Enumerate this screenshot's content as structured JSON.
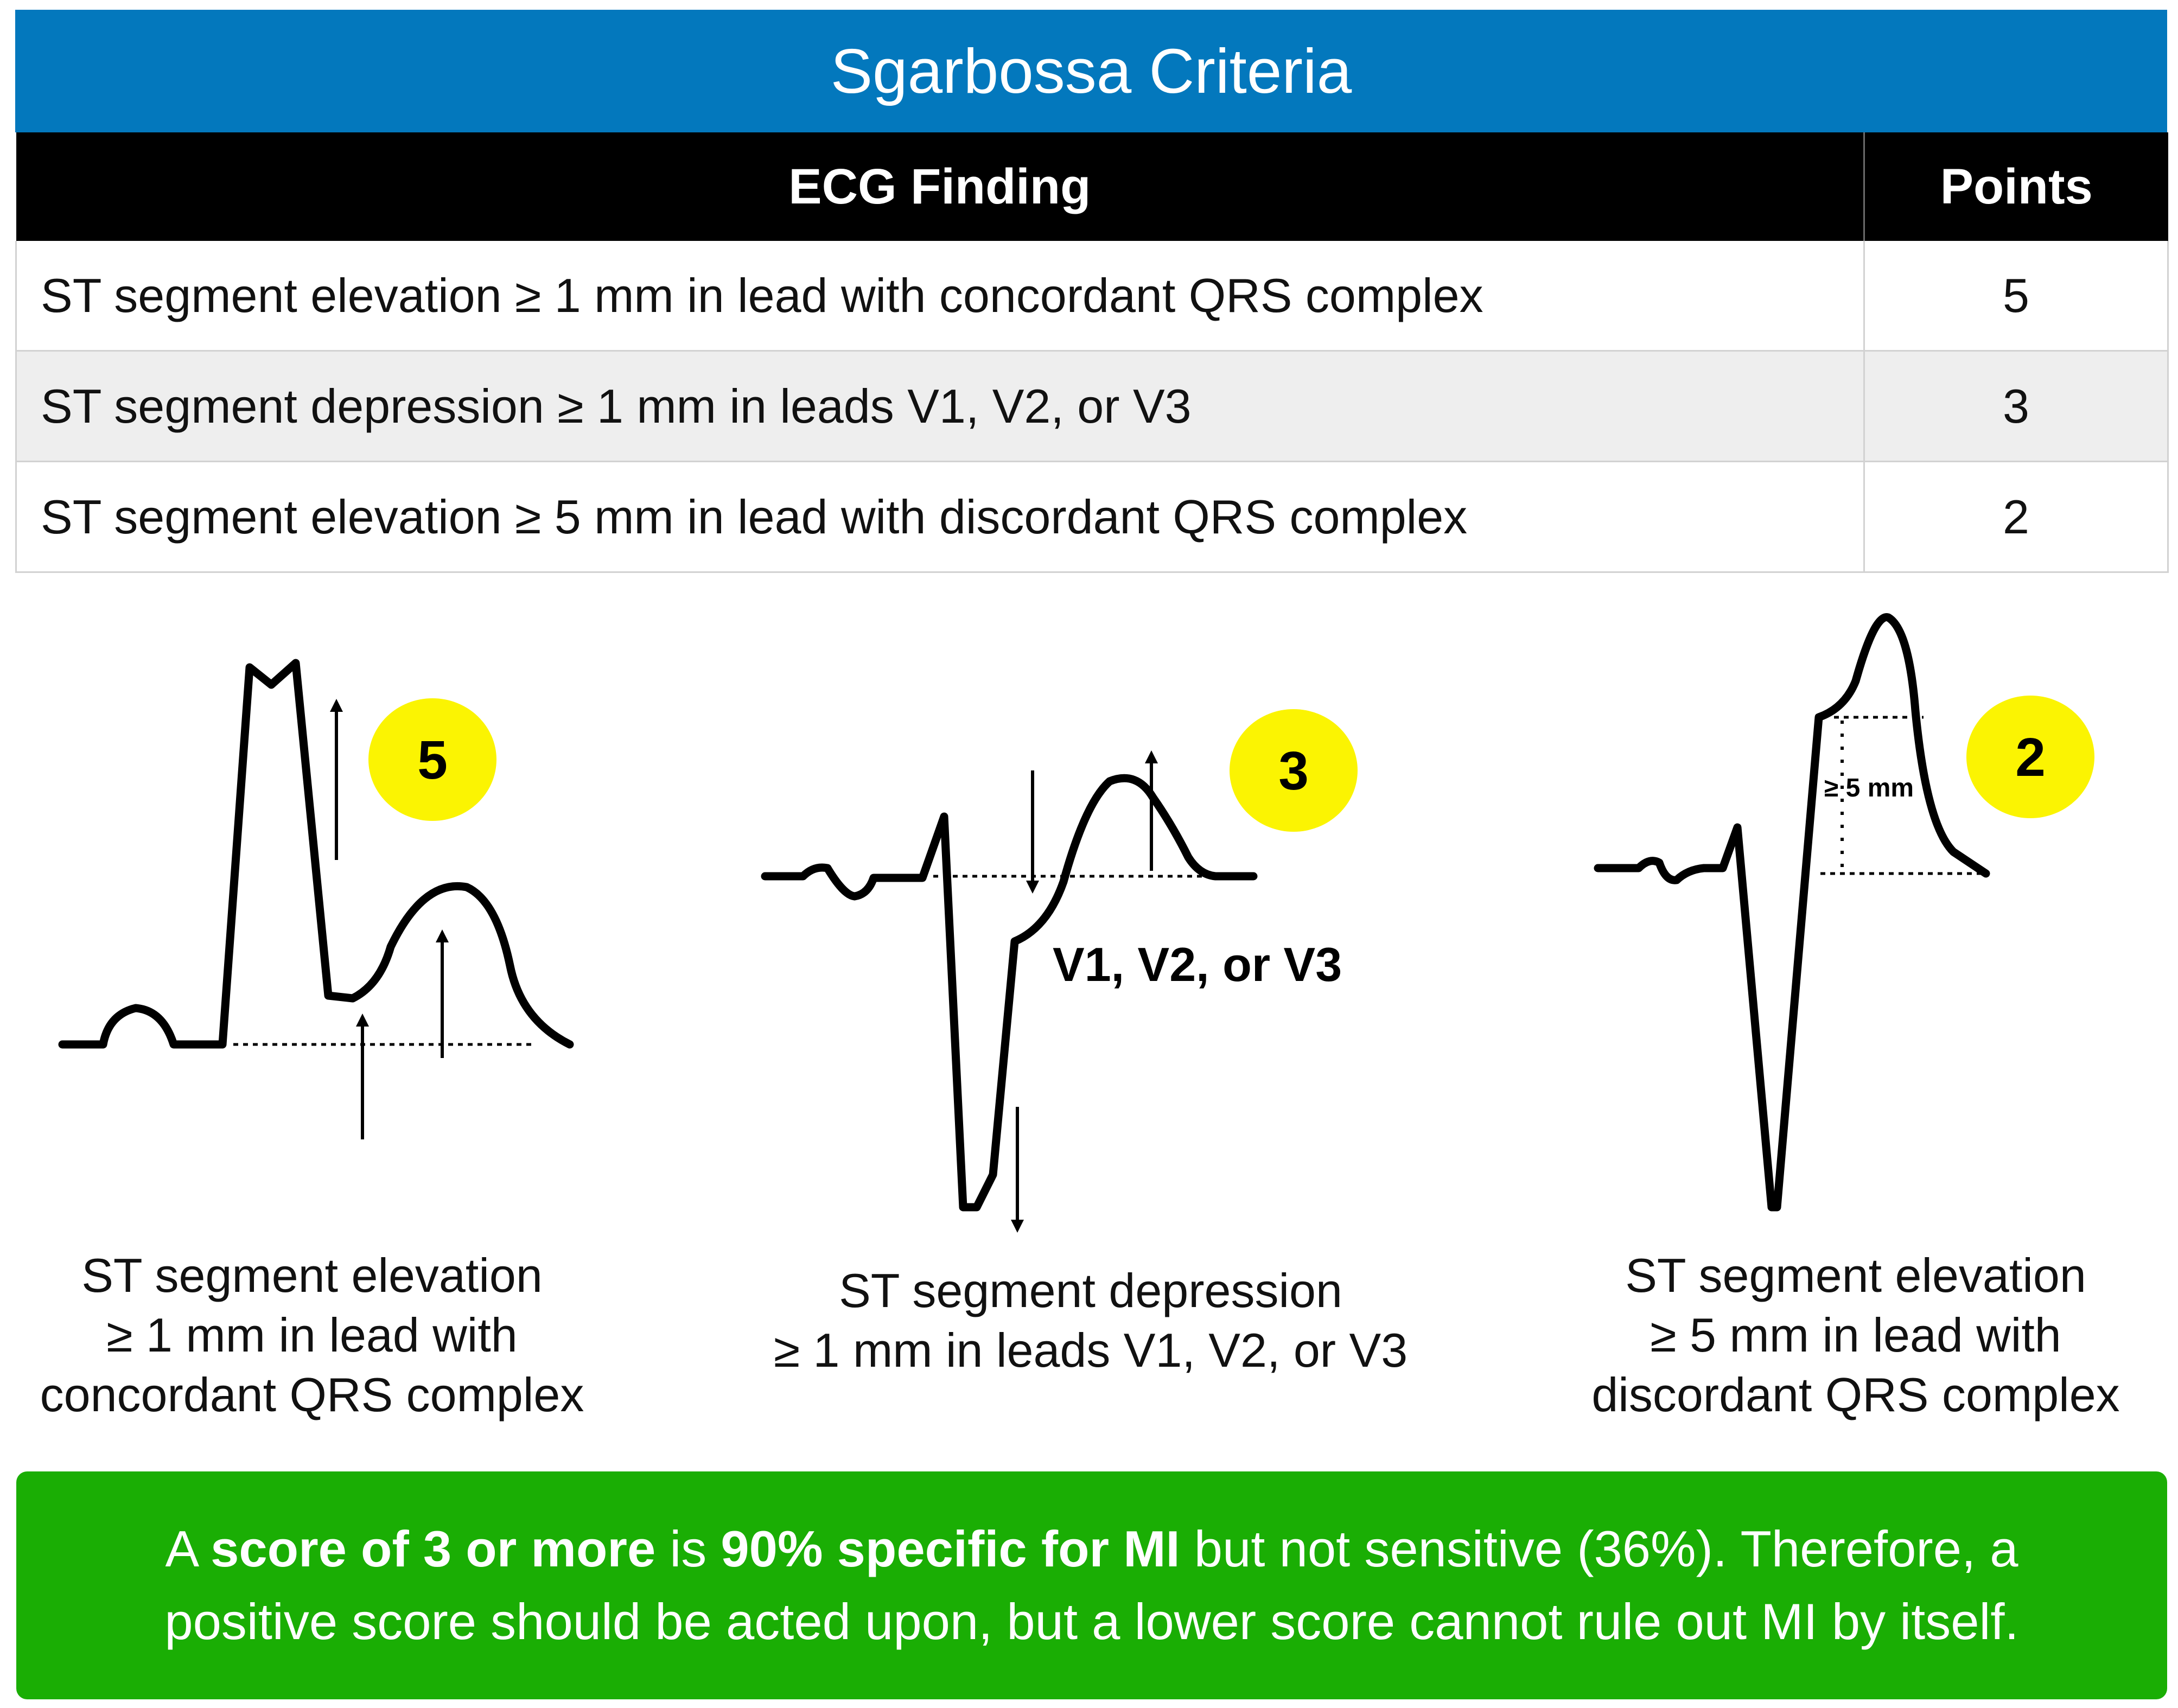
{
  "title": "Sgarbossa Criteria",
  "table": {
    "headers": {
      "finding": "ECG Finding",
      "points": "Points"
    },
    "rows": [
      {
        "finding": "ST segment elevation ≥ 1 mm in lead with concordant QRS complex",
        "points": "5"
      },
      {
        "finding": "ST segment depression ≥ 1 mm in leads V1, V2, or V3",
        "points": "3"
      },
      {
        "finding": "ST segment elevation ≥ 5 mm in lead with discordant QRS complex",
        "points": "2"
      }
    ]
  },
  "diagrams": [
    {
      "badge": "5",
      "caption": [
        "ST segment elevation",
        "≥ 1 mm in lead with",
        "concordant QRS complex"
      ]
    },
    {
      "badge": "3",
      "lead_label": "V1, V2, or V3",
      "caption": [
        "ST segment depression",
        "≥ 1 mm in leads V1, V2, or V3"
      ]
    },
    {
      "badge": "2",
      "measure_label": "≥ 5 mm",
      "caption": [
        "ST segment elevation",
        "≥ 5 mm in lead with",
        "discordant QRS complex"
      ]
    }
  ],
  "note": {
    "line1": {
      "a": "A ",
      "b": "score of 3 or more",
      "c": " is ",
      "d": "90% specific for MI",
      "e": " but not sensitive (36%). Therefore, a"
    },
    "line2": "positive score should be acted upon, but a lower score cannot rule out MI by itself."
  },
  "colors": {
    "header_blue": "#0378bd",
    "table_header": "#000000",
    "badge_yellow": "#fbf402",
    "note_green": "#1aae04"
  }
}
